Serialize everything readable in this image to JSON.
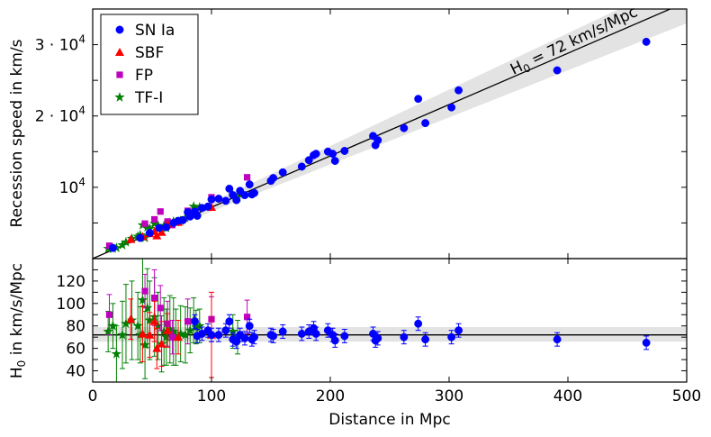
{
  "chart_data": [
    {
      "type": "scatter",
      "title": "",
      "xlabel": "Distance in Mpc",
      "ylabel": "Recession speed in km/s",
      "xlim": [
        0,
        500
      ],
      "ylim": [
        0,
        35000
      ],
      "yticks": [
        {
          "value": 10000,
          "base": "10",
          "exp": "4",
          "coef": ""
        },
        {
          "value": 20000,
          "base": "10",
          "exp": "4",
          "coef": "2 · "
        },
        {
          "value": 30000,
          "base": "10",
          "exp": "4",
          "coef": "3 · "
        }
      ],
      "fit": {
        "label_main": "H",
        "label_sub": "0",
        "label_rest": " = 72 km/s/Mpc",
        "slope": 72,
        "band_low": 66,
        "band_high": 79
      },
      "legend": {
        "placement": "top-left",
        "entries": [
          {
            "label": "SN Ia",
            "marker": "circle",
            "color": "#0000ff"
          },
          {
            "label": "SBF",
            "marker": "triangle",
            "color": "#ff0000"
          },
          {
            "label": "FP",
            "marker": "square",
            "color": "#bf00bf"
          },
          {
            "label": "TF-I",
            "marker": "star",
            "color": "#008000"
          }
        ]
      },
      "series": [
        {
          "name": "SN Ia",
          "marker": "circle",
          "color": "#0000ff",
          "points": [
            [
              17,
              1500
            ],
            [
              40,
              2900
            ],
            [
              48,
              3600
            ],
            [
              56,
              4300
            ],
            [
              62,
              4400
            ],
            [
              68,
              5000
            ],
            [
              72,
              5300
            ],
            [
              76,
              5400
            ],
            [
              80,
              6500
            ],
            [
              82,
              5900
            ],
            [
              86,
              6600
            ],
            [
              88,
              6000
            ],
            [
              92,
              7100
            ],
            [
              97,
              7300
            ],
            [
              100,
              8300
            ],
            [
              106,
              8400
            ],
            [
              112,
              8100
            ],
            [
              115,
              9800
            ],
            [
              118,
              8900
            ],
            [
              121,
              8200
            ],
            [
              124,
              9500
            ],
            [
              128,
              8900
            ],
            [
              132,
              10400
            ],
            [
              134,
              9000
            ],
            [
              136,
              9200
            ],
            [
              150,
              10900
            ],
            [
              152,
              11300
            ],
            [
              160,
              12100
            ],
            [
              176,
              12900
            ],
            [
              182,
              13800
            ],
            [
              186,
              14500
            ],
            [
              188,
              14700
            ],
            [
              198,
              15000
            ],
            [
              202,
              14700
            ],
            [
              204,
              13700
            ],
            [
              212,
              15100
            ],
            [
              236,
              17200
            ],
            [
              238,
              15900
            ],
            [
              240,
              16600
            ],
            [
              262,
              18300
            ],
            [
              274,
              22400
            ],
            [
              280,
              19000
            ],
            [
              302,
              21200
            ],
            [
              308,
              23600
            ],
            [
              391,
              26400
            ],
            [
              466,
              30400
            ]
          ]
        },
        {
          "name": "SBF",
          "marker": "triangle",
          "color": "#ff0000",
          "points": [
            [
              32,
              2700
            ],
            [
              42,
              3100
            ],
            [
              48,
              3500
            ],
            [
              52,
              3800
            ],
            [
              54,
              3200
            ],
            [
              58,
              3700
            ],
            [
              63,
              4800
            ],
            [
              72,
              5100
            ],
            [
              100,
              7200
            ]
          ]
        },
        {
          "name": "FP",
          "marker": "square",
          "color": "#bf00bf",
          "points": [
            [
              14,
              1800
            ],
            [
              44,
              4900
            ],
            [
              52,
              5500
            ],
            [
              57,
              6600
            ],
            [
              63,
              5200
            ],
            [
              67,
              4700
            ],
            [
              80,
              6700
            ],
            [
              100,
              8600
            ],
            [
              130,
              11400
            ]
          ]
        },
        {
          "name": "TF-I",
          "marker": "star",
          "color": "#008000",
          "points": [
            [
              13,
              1400
            ],
            [
              17,
              1400
            ],
            [
              20,
              1500
            ],
            [
              25,
              1900
            ],
            [
              28,
              2300
            ],
            [
              33,
              2800
            ],
            [
              38,
              3100
            ],
            [
              40,
              3300
            ],
            [
              42,
              4700
            ],
            [
              44,
              2900
            ],
            [
              46,
              4400
            ],
            [
              48,
              4200
            ],
            [
              52,
              4900
            ],
            [
              55,
              4600
            ],
            [
              58,
              3800
            ],
            [
              60,
              4600
            ],
            [
              62,
              4300
            ],
            [
              65,
              5000
            ],
            [
              68,
              5200
            ],
            [
              70,
              5100
            ],
            [
              74,
              5300
            ],
            [
              78,
              5700
            ],
            [
              82,
              6200
            ],
            [
              85,
              7300
            ],
            [
              87,
              6900
            ],
            [
              90,
              7200
            ],
            [
              118,
              8900
            ],
            [
              122,
              8600
            ]
          ]
        }
      ]
    },
    {
      "type": "scatter",
      "title": "",
      "xlabel": "Distance in Mpc",
      "ylabel_main": "H",
      "ylabel_sub": "0",
      "ylabel_rest": " in km/s/Mpc",
      "xlim": [
        0,
        500
      ],
      "ylim": [
        30,
        140
      ],
      "xticks": [
        "0",
        "100",
        "200",
        "300",
        "400",
        "500"
      ],
      "yticks": [
        "40",
        "60",
        "80",
        "100",
        "120"
      ],
      "hline": 72,
      "band": [
        66,
        79
      ],
      "series": [
        {
          "name": "SN Ia",
          "marker": "circle",
          "color": "#0000ff",
          "points": [
            [
              86,
              84,
              6
            ],
            [
              88,
              71,
              6
            ],
            [
              92,
              73,
              6
            ],
            [
              97,
              76,
              6
            ],
            [
              100,
              72,
              6
            ],
            [
              106,
              72,
              6
            ],
            [
              112,
              76,
              6
            ],
            [
              115,
              84,
              6
            ],
            [
              118,
              68,
              6
            ],
            [
              121,
              66,
              6
            ],
            [
              124,
              72,
              6
            ],
            [
              128,
              69,
              6
            ],
            [
              132,
              80,
              6
            ],
            [
              134,
              68,
              6
            ],
            [
              136,
              70,
              6
            ],
            [
              150,
              72,
              6
            ],
            [
              152,
              71,
              6
            ],
            [
              160,
              75,
              6
            ],
            [
              176,
              73,
              6
            ],
            [
              182,
              75,
              6
            ],
            [
              186,
              78,
              6
            ],
            [
              188,
              73,
              6
            ],
            [
              198,
              76,
              6
            ],
            [
              202,
              72,
              6
            ],
            [
              204,
              67,
              6
            ],
            [
              212,
              71,
              6
            ],
            [
              236,
              73,
              6
            ],
            [
              238,
              67,
              6
            ],
            [
              240,
              69,
              6
            ],
            [
              262,
              70,
              6
            ],
            [
              274,
              82,
              6
            ],
            [
              280,
              68,
              6
            ],
            [
              302,
              70,
              6
            ],
            [
              308,
              76,
              6
            ],
            [
              391,
              68,
              6
            ],
            [
              466,
              65,
              6
            ]
          ]
        },
        {
          "name": "SBF",
          "marker": "triangle",
          "color": "#ff0000",
          "points": [
            [
              32,
              86,
              18
            ],
            [
              42,
              73,
              25
            ],
            [
              48,
              72,
              20
            ],
            [
              52,
              84,
              18
            ],
            [
              54,
              60,
              18
            ],
            [
              58,
              64,
              20
            ],
            [
              63,
              76,
              15
            ],
            [
              72,
              70,
              15
            ],
            [
              100,
              72,
              38
            ]
          ]
        },
        {
          "name": "FP",
          "marker": "square",
          "color": "#bf00bf",
          "points": [
            [
              14,
              90,
              18
            ],
            [
              44,
              111,
              15
            ],
            [
              52,
              105,
              25
            ],
            [
              57,
              96,
              20
            ],
            [
              63,
              82,
              20
            ],
            [
              67,
              70,
              15
            ],
            [
              80,
              84,
              20
            ],
            [
              100,
              86,
              20
            ],
            [
              130,
              88,
              15
            ]
          ]
        },
        {
          "name": "TF-I",
          "marker": "star",
          "color": "#008000",
          "points": [
            [
              13,
              75,
              18
            ],
            [
              17,
              80,
              20
            ],
            [
              20,
              55,
              25
            ],
            [
              25,
              72,
              30
            ],
            [
              28,
              82,
              35
            ],
            [
              33,
              85,
              35
            ],
            [
              38,
              80,
              30
            ],
            [
              40,
              72,
              25
            ],
            [
              42,
              103,
              40
            ],
            [
              44,
              63,
              30
            ],
            [
              46,
              96,
              35
            ],
            [
              48,
              85,
              35
            ],
            [
              52,
              88,
              35
            ],
            [
              55,
              80,
              30
            ],
            [
              58,
              64,
              25
            ],
            [
              60,
              75,
              30
            ],
            [
              62,
              70,
              25
            ],
            [
              65,
              77,
              30
            ],
            [
              68,
              75,
              30
            ],
            [
              70,
              70,
              25
            ],
            [
              74,
              73,
              25
            ],
            [
              78,
              72,
              25
            ],
            [
              82,
              76,
              20
            ],
            [
              85,
              85,
              20
            ],
            [
              87,
              79,
              15
            ],
            [
              90,
              80,
              15
            ],
            [
              118,
              75,
              15
            ],
            [
              122,
              70,
              15
            ]
          ]
        }
      ]
    }
  ]
}
